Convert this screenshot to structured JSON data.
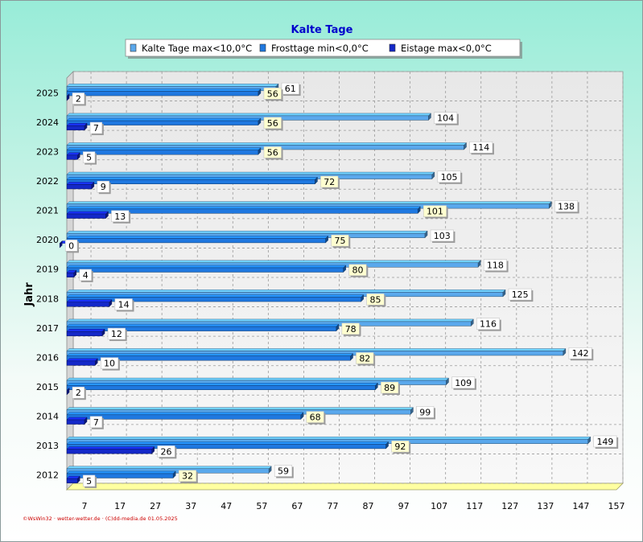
{
  "chart_data": {
    "type": "bar",
    "orientation": "horizontal",
    "title": "Kalte Tage",
    "ylabel": "Jahr",
    "xlabel": "",
    "categories": [
      "2025",
      "2024",
      "2023",
      "2022",
      "2021",
      "2020",
      "2019",
      "2018",
      "2017",
      "2016",
      "2015",
      "2014",
      "2013",
      "2012"
    ],
    "series": [
      {
        "name": "Kalte Tage max<10,0°C",
        "color": "#5aa8ec",
        "values": [
          61,
          104,
          114,
          105,
          138,
          103,
          118,
          125,
          116,
          142,
          109,
          99,
          149,
          59
        ]
      },
      {
        "name": "Frosttage min<0,0°C",
        "color": "#1f78e0",
        "values": [
          56,
          56,
          56,
          72,
          101,
          75,
          80,
          85,
          78,
          82,
          89,
          68,
          92,
          32
        ]
      },
      {
        "name": "Eistage max<0,0°C",
        "color": "#1428c8",
        "values": [
          2,
          7,
          5,
          9,
          13,
          0,
          4,
          14,
          12,
          10,
          2,
          7,
          26,
          5
        ]
      }
    ],
    "xlim": [
      2,
      157
    ],
    "xticks": [
      7,
      17,
      27,
      37,
      47,
      57,
      67,
      77,
      87,
      97,
      107,
      117,
      127,
      137,
      147,
      157
    ],
    "grid": true,
    "legend_position": "top",
    "background": "#f0f0f0"
  },
  "footer": "©WsWin32 · wetter-wetter.de · (C)dd-media.de  01.05.2025"
}
